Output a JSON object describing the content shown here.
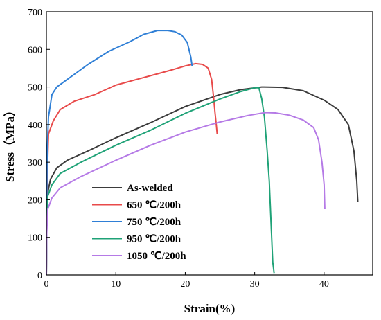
{
  "chart_data": {
    "type": "line",
    "xlabel": "Strain(%)",
    "ylabel": "Stress（MPa）",
    "xlim": [
      0,
      47
    ],
    "ylim": [
      0,
      700
    ],
    "xticks": [
      "0",
      "10",
      "20",
      "30",
      "40"
    ],
    "yticks": [
      "0",
      "100",
      "200",
      "300",
      "400",
      "500",
      "600",
      "700"
    ],
    "grid": false,
    "legend_position": "lower-left",
    "series": [
      {
        "name": "As-welded",
        "color": "#3b3b3b",
        "points": [
          [
            0,
            0
          ],
          [
            0.05,
            140
          ],
          [
            0.2,
            220
          ],
          [
            0.6,
            255
          ],
          [
            1.5,
            285
          ],
          [
            3,
            305
          ],
          [
            6,
            330
          ],
          [
            10,
            365
          ],
          [
            15,
            405
          ],
          [
            20,
            448
          ],
          [
            25,
            480
          ],
          [
            28,
            493
          ],
          [
            31,
            500
          ],
          [
            34,
            499
          ],
          [
            37,
            490
          ],
          [
            40,
            465
          ],
          [
            42,
            440
          ],
          [
            43.5,
            400
          ],
          [
            44.3,
            330
          ],
          [
            44.7,
            250
          ],
          [
            44.85,
            195
          ]
        ]
      },
      {
        "name": "650 ℃/200h",
        "color": "#e84a4a",
        "points": [
          [
            0,
            0
          ],
          [
            0.1,
            250
          ],
          [
            0.3,
            375
          ],
          [
            1,
            410
          ],
          [
            2,
            440
          ],
          [
            4,
            462
          ],
          [
            7,
            480
          ],
          [
            10,
            505
          ],
          [
            13,
            520
          ],
          [
            16,
            535
          ],
          [
            18,
            545
          ],
          [
            20,
            556
          ],
          [
            21.5,
            562
          ],
          [
            22.5,
            560
          ],
          [
            23.3,
            550
          ],
          [
            23.8,
            520
          ],
          [
            24.1,
            470
          ],
          [
            24.3,
            430
          ],
          [
            24.5,
            395
          ],
          [
            24.6,
            375
          ]
        ]
      },
      {
        "name": "750 ℃/200h",
        "color": "#2f7fd6",
        "points": [
          [
            0,
            0
          ],
          [
            0.1,
            320
          ],
          [
            0.3,
            420
          ],
          [
            0.8,
            480
          ],
          [
            1.5,
            500
          ],
          [
            3,
            520
          ],
          [
            6,
            560
          ],
          [
            9,
            595
          ],
          [
            12,
            620
          ],
          [
            14,
            640
          ],
          [
            16,
            650
          ],
          [
            17.5,
            650
          ],
          [
            18.5,
            647
          ],
          [
            19.5,
            638
          ],
          [
            20.3,
            618
          ],
          [
            20.8,
            580
          ],
          [
            21,
            555
          ]
        ]
      },
      {
        "name": "950 ℃/200h",
        "color": "#1fa277",
        "points": [
          [
            0,
            0
          ],
          [
            0.05,
            140
          ],
          [
            0.2,
            210
          ],
          [
            0.8,
            240
          ],
          [
            2,
            270
          ],
          [
            5,
            300
          ],
          [
            10,
            345
          ],
          [
            15,
            385
          ],
          [
            20,
            430
          ],
          [
            25,
            468
          ],
          [
            28,
            488
          ],
          [
            30,
            498
          ],
          [
            30.6,
            498
          ],
          [
            31,
            470
          ],
          [
            31.4,
            420
          ],
          [
            31.8,
            330
          ],
          [
            32.1,
            250
          ],
          [
            32.4,
            120
          ],
          [
            32.6,
            35
          ],
          [
            32.8,
            5
          ]
        ]
      },
      {
        "name": "1050 ℃/200h",
        "color": "#b57ae6",
        "points": [
          [
            0,
            0
          ],
          [
            0.05,
            110
          ],
          [
            0.2,
            175
          ],
          [
            0.8,
            205
          ],
          [
            2,
            232
          ],
          [
            5,
            262
          ],
          [
            10,
            305
          ],
          [
            15,
            345
          ],
          [
            20,
            380
          ],
          [
            25,
            407
          ],
          [
            29,
            424
          ],
          [
            31.5,
            432
          ],
          [
            33,
            431
          ],
          [
            35,
            425
          ],
          [
            37,
            412
          ],
          [
            38.5,
            392
          ],
          [
            39.2,
            360
          ],
          [
            39.7,
            300
          ],
          [
            40,
            240
          ],
          [
            40.1,
            175
          ]
        ]
      }
    ]
  }
}
